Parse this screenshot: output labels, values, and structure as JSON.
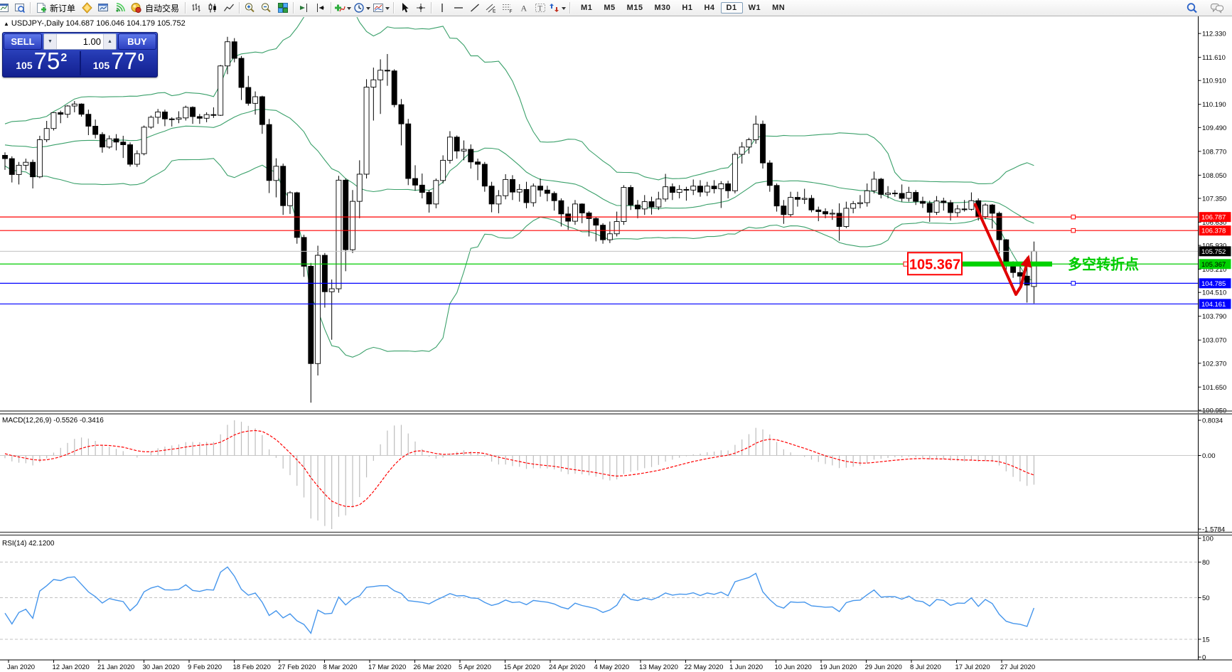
{
  "toolbar": {
    "new_order_label": "新订单",
    "autotrading_label": "自动交易",
    "timeframes": [
      "M1",
      "M5",
      "M15",
      "M30",
      "H1",
      "H4",
      "D1",
      "W1",
      "MN"
    ],
    "active_timeframe": "D1"
  },
  "trade_panel": {
    "sell_label": "SELL",
    "buy_label": "BUY",
    "volume": "1.00",
    "price_prefix": "105",
    "sell_price_big": "75",
    "sell_price_sup": "2",
    "buy_price_big": "77",
    "buy_price_sup": "0"
  },
  "symbol_header": {
    "text": "USDJPY-,Daily  104.687 106.046 104.179 105.752"
  },
  "chart_data": {
    "type": "candlestick",
    "symbol": "USDJPY-",
    "timeframe": "Daily",
    "ohlc_display": [
      "104.687",
      "106.046",
      "104.179",
      "105.752"
    ],
    "price_axis_ticks": [
      112.33,
      111.61,
      110.91,
      110.19,
      109.49,
      108.77,
      108.05,
      107.35,
      106.63,
      105.93,
      105.21,
      104.51,
      103.79,
      103.07,
      102.37,
      101.65,
      100.95
    ],
    "date_labels": [
      "Jan 2020",
      "12 Jan 2020",
      "21 Jan 2020",
      "30 Jan 2020",
      "9 Feb 2020",
      "18 Feb 2020",
      "27 Feb 2020",
      "8 Mar 2020",
      "17 Mar 2020",
      "26 Mar 2020",
      "5 Apr 2020",
      "15 Apr 2020",
      "24 Apr 2020",
      "4 May 2020",
      "13 May 2020",
      "22 May 2020",
      "1 Jun 2020",
      "10 Jun 2020",
      "19 Jun 2020",
      "29 Jun 2020",
      "8 Jul 2020",
      "17 Jul 2020",
      "27 Jul 2020"
    ],
    "pre_closes": [
      108.9,
      109.0,
      109.1,
      109.25,
      109.2,
      109.0,
      108.8,
      108.6,
      108.45,
      108.6,
      108.75,
      108.85,
      109.0,
      109.1,
      108.95,
      108.8,
      108.65,
      108.5,
      108.6,
      108.7,
      108.85,
      109.0,
      109.1,
      109.2,
      109.35,
      109.45,
      109.5,
      109.4,
      109.3,
      109.15,
      109.0,
      108.9,
      108.8,
      108.7,
      108.6
    ],
    "candles": [
      [
        108.65,
        108.74,
        108.21,
        108.55
      ],
      [
        108.55,
        108.62,
        107.83,
        108.07
      ],
      [
        108.07,
        108.45,
        107.77,
        108.35
      ],
      [
        108.35,
        108.55,
        108.2,
        108.44
      ],
      [
        108.44,
        108.52,
        107.65,
        108.0
      ],
      [
        108.0,
        109.24,
        107.96,
        109.12
      ],
      [
        109.12,
        109.69,
        109.05,
        109.46
      ],
      [
        109.46,
        109.95,
        109.4,
        109.94
      ],
      [
        109.94,
        110.0,
        109.62,
        109.89
      ],
      [
        109.89,
        110.17,
        109.78,
        110.14
      ],
      [
        110.14,
        110.29,
        109.95,
        110.2
      ],
      [
        110.2,
        110.22,
        109.82,
        109.89
      ],
      [
        109.89,
        110.03,
        109.26,
        109.53
      ],
      [
        109.53,
        109.73,
        109.16,
        109.28
      ],
      [
        109.28,
        109.35,
        108.73,
        108.9
      ],
      [
        108.9,
        109.25,
        108.85,
        109.15
      ],
      [
        109.15,
        109.29,
        108.8,
        109.05
      ],
      [
        109.05,
        109.24,
        108.57,
        108.97
      ],
      [
        108.97,
        109.04,
        108.31,
        108.38
      ],
      [
        108.38,
        108.8,
        108.3,
        108.7
      ],
      [
        108.7,
        109.55,
        108.65,
        109.5
      ],
      [
        109.5,
        109.85,
        109.45,
        109.8
      ],
      [
        109.8,
        110.05,
        109.6,
        109.96
      ],
      [
        109.96,
        110.03,
        109.53,
        109.75
      ],
      [
        109.75,
        109.8,
        109.52,
        109.74
      ],
      [
        109.74,
        109.98,
        109.62,
        109.78
      ],
      [
        109.78,
        110.15,
        109.7,
        110.1
      ],
      [
        110.1,
        110.13,
        109.6,
        109.82
      ],
      [
        109.82,
        109.9,
        109.6,
        109.77
      ],
      [
        109.77,
        109.95,
        109.65,
        109.88
      ],
      [
        109.88,
        110.1,
        109.78,
        109.86
      ],
      [
        109.86,
        111.38,
        109.84,
        111.35
      ],
      [
        111.35,
        112.23,
        111.1,
        112.08
      ],
      [
        112.08,
        112.19,
        111.46,
        111.58
      ],
      [
        111.58,
        111.65,
        110.32,
        110.7
      ],
      [
        110.7,
        111.05,
        110.15,
        110.22
      ],
      [
        110.22,
        110.58,
        109.88,
        110.42
      ],
      [
        110.42,
        110.45,
        109.3,
        109.58
      ],
      [
        109.58,
        109.75,
        107.51,
        107.89
      ],
      [
        107.89,
        108.56,
        107.38,
        108.32
      ],
      [
        108.32,
        108.4,
        106.85,
        107.13
      ],
      [
        107.13,
        107.57,
        106.88,
        107.52
      ],
      [
        107.52,
        107.55,
        105.98,
        106.17
      ],
      [
        106.17,
        106.25,
        104.98,
        105.3
      ],
      [
        105.3,
        105.4,
        101.18,
        102.36
      ],
      [
        102.36,
        105.92,
        102.0,
        105.63
      ],
      [
        105.63,
        105.7,
        104.05,
        104.53
      ],
      [
        104.53,
        104.9,
        103.08,
        104.62
      ],
      [
        104.62,
        108.03,
        104.5,
        107.9
      ],
      [
        107.9,
        107.95,
        105.15,
        105.8
      ],
      [
        105.8,
        107.6,
        105.7,
        107.26
      ],
      [
        107.26,
        108.5,
        106.75,
        108.08
      ],
      [
        108.08,
        110.95,
        107.95,
        110.71
      ],
      [
        110.71,
        111.3,
        109.7,
        110.93
      ],
      [
        110.93,
        111.55,
        109.9,
        111.22
      ],
      [
        111.22,
        111.71,
        110.75,
        111.2
      ],
      [
        111.2,
        111.25,
        110.1,
        110.18
      ],
      [
        110.18,
        110.35,
        108.95,
        109.6
      ],
      [
        109.6,
        109.75,
        107.75,
        107.95
      ],
      [
        107.95,
        108.35,
        107.58,
        107.75
      ],
      [
        107.75,
        108.1,
        107.35,
        107.53
      ],
      [
        107.53,
        107.6,
        106.92,
        107.18
      ],
      [
        107.18,
        107.95,
        107.05,
        107.89
      ],
      [
        107.89,
        108.65,
        107.8,
        108.5
      ],
      [
        108.5,
        109.38,
        108.4,
        109.2
      ],
      [
        109.2,
        109.25,
        108.55,
        108.78
      ],
      [
        108.78,
        109.1,
        108.5,
        108.83
      ],
      [
        108.83,
        108.98,
        108.25,
        108.45
      ],
      [
        108.45,
        108.55,
        107.9,
        108.38
      ],
      [
        108.38,
        108.45,
        107.55,
        107.72
      ],
      [
        107.72,
        107.85,
        106.93,
        107.18
      ],
      [
        107.18,
        107.6,
        106.9,
        107.43
      ],
      [
        107.43,
        108.08,
        107.32,
        107.92
      ],
      [
        107.92,
        108.05,
        107.3,
        107.54
      ],
      [
        107.54,
        107.78,
        107.25,
        107.62
      ],
      [
        107.62,
        107.85,
        107.05,
        107.22
      ],
      [
        107.22,
        107.8,
        107.1,
        107.72
      ],
      [
        107.72,
        107.95,
        107.4,
        107.6
      ],
      [
        107.6,
        107.73,
        107.26,
        107.5
      ],
      [
        107.5,
        107.56,
        106.98,
        107.28
      ],
      [
        107.28,
        107.35,
        106.5,
        106.88
      ],
      [
        106.88,
        107.1,
        106.4,
        106.66
      ],
      [
        106.66,
        107.3,
        106.55,
        107.18
      ],
      [
        107.18,
        107.2,
        106.6,
        106.91
      ],
      [
        106.91,
        106.96,
        106.2,
        106.74
      ],
      [
        106.74,
        106.8,
        106.05,
        106.54
      ],
      [
        106.54,
        106.6,
        105.98,
        106.1
      ],
      [
        106.1,
        106.65,
        106.0,
        106.28
      ],
      [
        106.28,
        106.95,
        106.2,
        106.65
      ],
      [
        106.65,
        107.75,
        106.55,
        107.68
      ],
      [
        107.68,
        107.75,
        107.0,
        107.15
      ],
      [
        107.15,
        107.3,
        106.75,
        107.03
      ],
      [
        107.03,
        107.45,
        106.85,
        107.25
      ],
      [
        107.25,
        107.4,
        106.86,
        107.09
      ],
      [
        107.09,
        107.55,
        107.0,
        107.33
      ],
      [
        107.33,
        108.09,
        107.25,
        107.7
      ],
      [
        107.7,
        107.8,
        107.3,
        107.53
      ],
      [
        107.53,
        107.75,
        107.35,
        107.62
      ],
      [
        107.62,
        107.7,
        107.28,
        107.6
      ],
      [
        107.6,
        107.92,
        107.45,
        107.72
      ],
      [
        107.72,
        107.9,
        107.4,
        107.54
      ],
      [
        107.54,
        107.85,
        107.42,
        107.72
      ],
      [
        107.72,
        107.9,
        107.5,
        107.64
      ],
      [
        107.64,
        107.87,
        107.06,
        107.79
      ],
      [
        107.79,
        107.88,
        107.35,
        107.58
      ],
      [
        107.58,
        108.75,
        107.5,
        108.68
      ],
      [
        108.68,
        109.05,
        108.4,
        108.9
      ],
      [
        108.9,
        109.18,
        108.7,
        109.12
      ],
      [
        109.12,
        109.85,
        109.0,
        109.59
      ],
      [
        109.59,
        109.7,
        108.25,
        108.42
      ],
      [
        108.42,
        108.5,
        107.55,
        107.74
      ],
      [
        107.74,
        107.8,
        106.95,
        107.12
      ],
      [
        107.12,
        107.3,
        106.58,
        106.86
      ],
      [
        106.86,
        107.55,
        106.8,
        107.38
      ],
      [
        107.38,
        107.55,
        107.1,
        107.32
      ],
      [
        107.32,
        107.64,
        107.18,
        107.35
      ],
      [
        107.35,
        107.45,
        106.93,
        107.0
      ],
      [
        107.0,
        107.1,
        106.66,
        106.95
      ],
      [
        106.95,
        107.05,
        106.75,
        106.88
      ],
      [
        106.88,
        107.02,
        106.7,
        106.9
      ],
      [
        106.9,
        107.2,
        106.07,
        106.5
      ],
      [
        106.5,
        107.25,
        106.45,
        107.05
      ],
      [
        107.05,
        107.27,
        106.9,
        107.19
      ],
      [
        107.19,
        107.45,
        107.05,
        107.22
      ],
      [
        107.22,
        107.8,
        107.1,
        107.58
      ],
      [
        107.58,
        108.16,
        107.5,
        107.93
      ],
      [
        107.93,
        107.97,
        107.35,
        107.47
      ],
      [
        107.47,
        107.72,
        107.35,
        107.51
      ],
      [
        107.51,
        107.6,
        107.4,
        107.5
      ],
      [
        107.5,
        107.77,
        107.25,
        107.35
      ],
      [
        107.35,
        107.7,
        107.25,
        107.53
      ],
      [
        107.53,
        107.6,
        107.15,
        107.26
      ],
      [
        107.26,
        107.4,
        107.06,
        107.2
      ],
      [
        107.2,
        107.28,
        106.64,
        106.93
      ],
      [
        106.93,
        107.42,
        106.85,
        107.27
      ],
      [
        107.27,
        107.37,
        106.98,
        107.22
      ],
      [
        107.22,
        107.3,
        106.68,
        106.92
      ],
      [
        106.92,
        107.15,
        106.8,
        107.03
      ],
      [
        107.03,
        107.3,
        106.95,
        107.02
      ],
      [
        107.02,
        107.53,
        106.98,
        107.28
      ],
      [
        107.28,
        107.35,
        106.68,
        106.8
      ],
      [
        106.8,
        107.2,
        106.72,
        107.15
      ],
      [
        107.15,
        107.18,
        106.44,
        106.9
      ],
      [
        106.9,
        106.95,
        105.68,
        106.1
      ],
      [
        106.1,
        106.12,
        105.1,
        105.38
      ],
      [
        105.38,
        105.45,
        104.95,
        105.11
      ],
      [
        105.11,
        105.32,
        104.62,
        105.0
      ],
      [
        105.0,
        105.58,
        104.2,
        104.73
      ],
      [
        104.687,
        106.046,
        104.179,
        105.752
      ]
    ],
    "indicators": {
      "bollinger": {
        "period": 20,
        "deviation": 2,
        "color": "#3aa06a"
      },
      "macd": {
        "label": "MACD(12,26,9) -0.5526 -0.3416",
        "params": [
          12,
          26,
          9
        ],
        "values_text": [
          "-0.5526",
          "-0.3416"
        ],
        "scale_labels": [
          "0.8034",
          "0.00",
          "-1.5784"
        ],
        "histogram_color": "#bdbdbd",
        "signal_color": "#ff0000"
      },
      "rsi": {
        "label": "RSI(14) 42.1200",
        "period": 14,
        "value_text": "42.1200",
        "scale_labels": [
          "100",
          "80",
          "50",
          "15",
          "0"
        ],
        "levels": [
          80,
          50,
          15
        ],
        "color": "#4696ec"
      }
    },
    "hlines": [
      {
        "price": 106.787,
        "color": "#ff0000",
        "label_bg": "#ff0000",
        "label_fg": "#ffffff",
        "handle": true
      },
      {
        "price": 106.378,
        "color": "#ff0000",
        "label_bg": "#ff0000",
        "label_fg": "#ffffff",
        "handle": true
      },
      {
        "price": 105.367,
        "color": "#00cc00",
        "label_bg": "#00d200",
        "label_fg": "#000000",
        "handle": true
      },
      {
        "price": 104.785,
        "color": "#0000ff",
        "label_bg": "#0000ff",
        "label_fg": "#ffffff",
        "handle": true
      },
      {
        "price": 104.161,
        "color": "#0000ff",
        "label_bg": "#0000ff",
        "label_fg": "#ffffff",
        "handle": false
      }
    ],
    "current_price": {
      "price": 105.752,
      "line_color": "#c0c0c0",
      "label_bg": "#000000",
      "label_fg": "#ffffff"
    },
    "annotations": {
      "price_box": {
        "text": "105.367",
        "color": "#ff0000"
      },
      "thick_segment": {
        "price": 105.367,
        "color": "#00d200"
      },
      "note_text": {
        "text": "多空转折点",
        "color": "#00cc00"
      },
      "arrow_color": "#e00000"
    }
  }
}
